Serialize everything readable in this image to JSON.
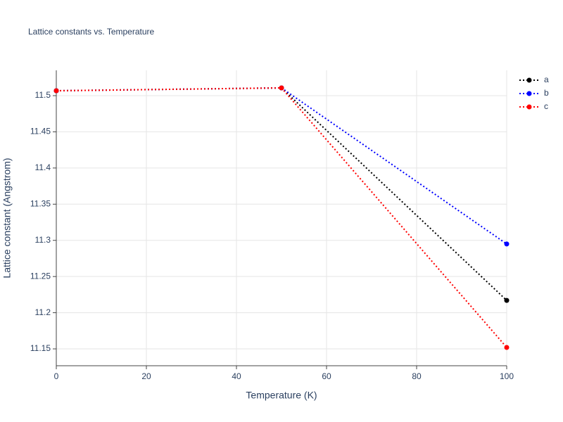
{
  "chart_data": {
    "type": "line",
    "title": "Lattice constants vs. Temperature",
    "x_label": "Temperature (K)",
    "y_label": "Lattice constant (Angstrom)",
    "x": [
      0,
      50,
      100
    ],
    "series": [
      {
        "name": "a",
        "color": "#000000",
        "values": [
          11.5068,
          11.5107,
          11.217
        ]
      },
      {
        "name": "b",
        "color": "#0000ff",
        "values": [
          11.5068,
          11.5107,
          11.295
        ]
      },
      {
        "name": "c",
        "color": "#ff0000",
        "values": [
          11.5068,
          11.5107,
          11.152
        ]
      }
    ],
    "xlim": [
      0,
      100
    ],
    "xticks": [
      0,
      20,
      40,
      60,
      80,
      100
    ],
    "ylim": [
      11.1267,
      11.535
    ],
    "yticks": [
      11.15,
      11.2,
      11.25,
      11.3,
      11.35,
      11.4,
      11.45,
      11.5
    ],
    "grid": true,
    "legend": "top-right"
  }
}
